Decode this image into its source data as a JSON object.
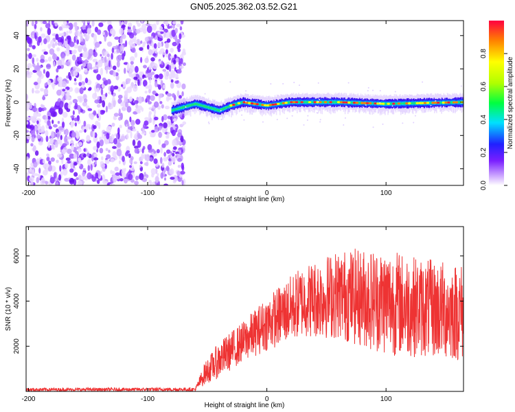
{
  "title": "GN05.2025.362.03.52.G21",
  "chart_data": [
    {
      "type": "heatmap",
      "name": "spectrogram",
      "xlabel": "Height of straight line (km)",
      "ylabel": "Frequency (Hz)",
      "xlim": [
        -202,
        165
      ],
      "ylim": [
        -50,
        49
      ],
      "xticks": [
        -200,
        -100,
        0,
        100
      ],
      "yticks": [
        -40,
        -20,
        0,
        20,
        40
      ],
      "noise_region_x": [
        -202,
        -68
      ],
      "signal_track": [
        {
          "x": -80,
          "f": -5
        },
        {
          "x": -70,
          "f": -3
        },
        {
          "x": -60,
          "f": -1
        },
        {
          "x": -50,
          "f": -3
        },
        {
          "x": -40,
          "f": -5
        },
        {
          "x": -30,
          "f": -2
        },
        {
          "x": -20,
          "f": 0
        },
        {
          "x": 0,
          "f": -2
        },
        {
          "x": 20,
          "f": 0
        },
        {
          "x": 60,
          "f": 0
        },
        {
          "x": 100,
          "f": -1
        },
        {
          "x": 165,
          "f": 0
        }
      ],
      "colorbar": {
        "label": "Normalized spectral amplitude",
        "range": [
          0,
          1
        ],
        "ticks": [
          0.0,
          0.2,
          0.4,
          0.6,
          0.8
        ]
      }
    },
    {
      "type": "line",
      "name": "snr",
      "xlabel": "Height of straight line (km)",
      "ylabel": "SNR (10 * v/v)",
      "xlim": [
        -202,
        165
      ],
      "ylim": [
        0,
        7300
      ],
      "xticks": [
        -200,
        -100,
        0,
        100
      ],
      "yticks": [
        2000,
        4000,
        6000
      ],
      "color": "#ee3333",
      "envelope": [
        {
          "x": -202,
          "mean": 80,
          "amp": 70
        },
        {
          "x": -60,
          "mean": 90,
          "amp": 80
        },
        {
          "x": -52,
          "mean": 800,
          "amp": 500
        },
        {
          "x": -40,
          "mean": 1400,
          "amp": 800
        },
        {
          "x": -20,
          "mean": 2200,
          "amp": 900
        },
        {
          "x": 0,
          "mean": 3000,
          "amp": 1200
        },
        {
          "x": 30,
          "mean": 4000,
          "amp": 1600
        },
        {
          "x": 60,
          "mean": 4300,
          "amp": 2000
        },
        {
          "x": 100,
          "mean": 4000,
          "amp": 2400
        },
        {
          "x": 130,
          "mean": 3700,
          "amp": 2200
        },
        {
          "x": 165,
          "mean": 3500,
          "amp": 2200
        }
      ]
    }
  ]
}
